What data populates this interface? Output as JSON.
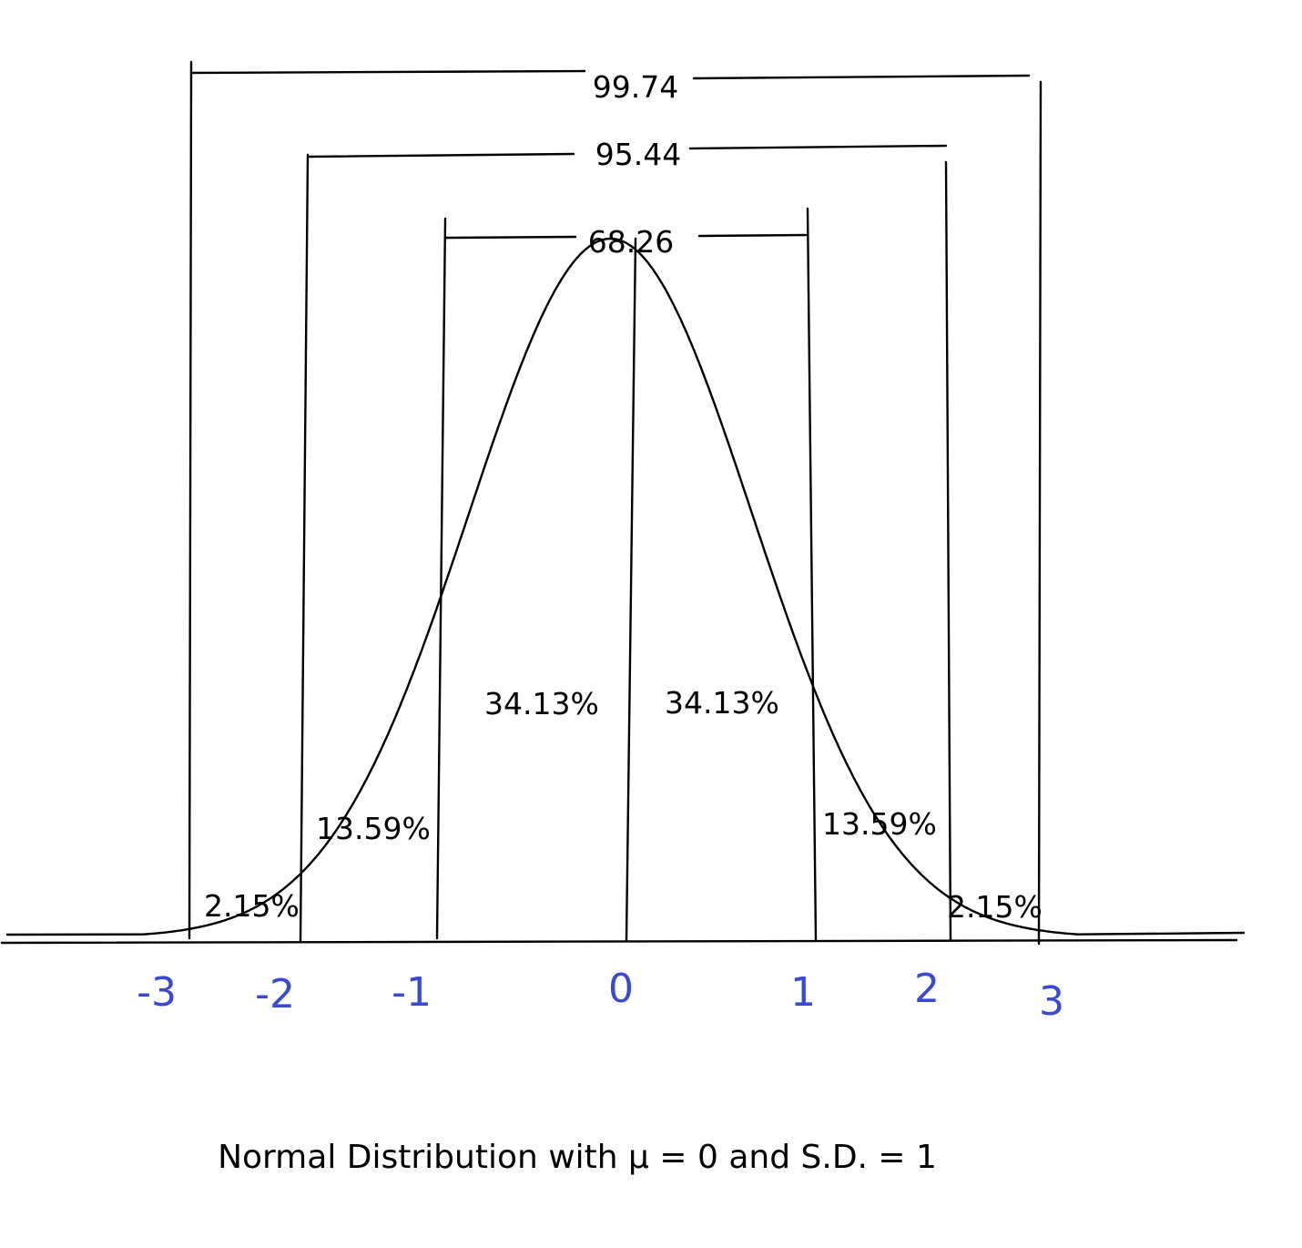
{
  "diagram": {
    "mean": 0,
    "sd": 1,
    "x_range": [
      -3.3,
      3.3
    ],
    "boundaries": [
      -3,
      -2,
      -1,
      0,
      1,
      2,
      3
    ],
    "axis_labels": [
      "-3",
      "-2",
      "-1",
      "0",
      "1",
      "2",
      "3"
    ],
    "region_percentages": [
      {
        "label": "2.15%",
        "from": -3,
        "to": -2
      },
      {
        "label": "13.59%",
        "from": -2,
        "to": -1
      },
      {
        "label": "34.13%",
        "from": -1,
        "to": 0
      },
      {
        "label": "34.13%",
        "from": 0,
        "to": 1
      },
      {
        "label": "13.59%",
        "from": 1,
        "to": 2
      },
      {
        "label": "2.15%",
        "from": 2,
        "to": 3
      }
    ],
    "brackets": [
      {
        "label": "99.74",
        "from": -3,
        "to": 3
      },
      {
        "label": "95.44",
        "from": -2,
        "to": 2
      },
      {
        "label": "68.26",
        "from": -1,
        "to": 1
      }
    ],
    "caption": "Normal Distribution with μ = 0 and S.D. = 1"
  },
  "colors": {
    "ink": "#000000",
    "axis_labels": "#3a49d4",
    "background": "#ffffff"
  }
}
